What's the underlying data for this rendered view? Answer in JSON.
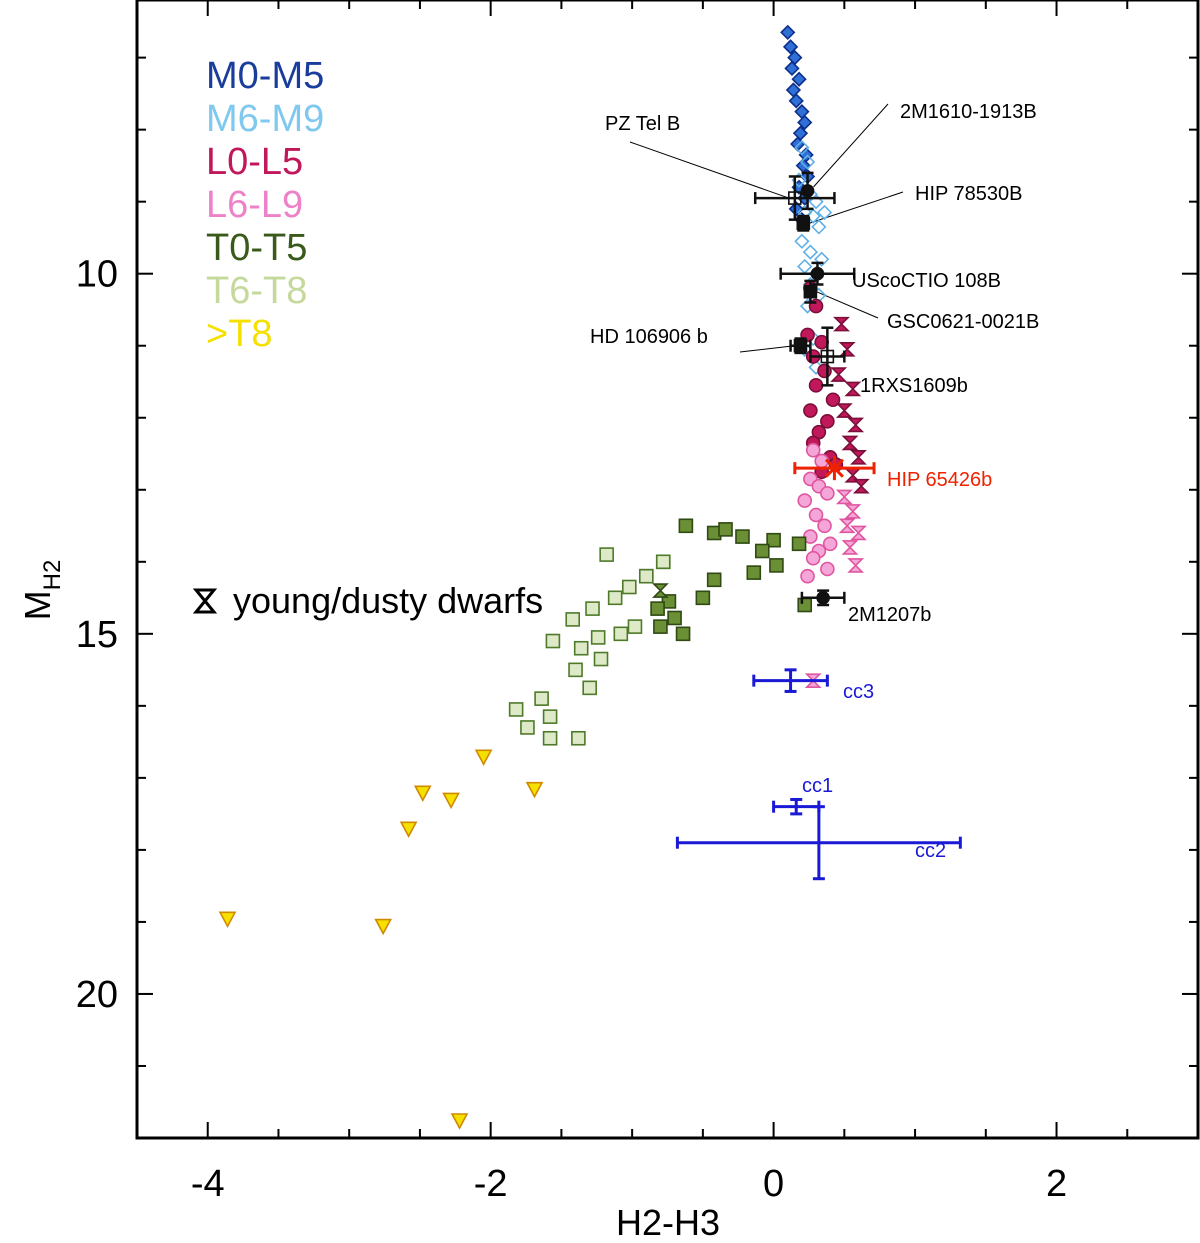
{
  "chart_data": {
    "type": "scatter",
    "xlabel": "H2-H3",
    "ylabel_main": "M",
    "ylabel_sub": "H2",
    "xlim": [
      -4.5,
      3.0
    ],
    "ylim": [
      6.2,
      22.0
    ],
    "y_inverted": true,
    "xticks": [
      -4,
      -2,
      0,
      2
    ],
    "xtick_labels": [
      "-4",
      "-2",
      "0",
      "2"
    ],
    "yticks": [
      10,
      15,
      20
    ],
    "ytick_labels": [
      "10",
      "15",
      "20"
    ],
    "legend": [
      {
        "label": "M0-M5",
        "color": "#1a3d9c"
      },
      {
        "label": "M6-M9",
        "color": "#7fc8ef"
      },
      {
        "label": "L0-L5",
        "color": "#c0185a"
      },
      {
        "label": "L6-L9",
        "color": "#ee82c8"
      },
      {
        "label": "T0-T5",
        "color": "#3a5a1c"
      },
      {
        "label": "T6-T8",
        "color": "#c5d99c"
      },
      {
        "label": ">T8",
        "color": "#f5e000"
      }
    ],
    "young_legend": "young/dusty dwarfs",
    "series": [
      {
        "name": "M0-M5",
        "marker": "diamond",
        "fill": "#2f6fd6",
        "stroke": "#0b2f8a",
        "points": [
          [
            0.1,
            6.65
          ],
          [
            0.12,
            6.85
          ],
          [
            0.15,
            7.0
          ],
          [
            0.13,
            7.15
          ],
          [
            0.18,
            7.3
          ],
          [
            0.14,
            7.45
          ],
          [
            0.16,
            7.6
          ],
          [
            0.2,
            7.75
          ],
          [
            0.22,
            7.9
          ],
          [
            0.19,
            8.05
          ],
          [
            0.17,
            8.2
          ],
          [
            0.23,
            8.35
          ],
          [
            0.21,
            8.5
          ],
          [
            0.24,
            8.65
          ],
          [
            0.18,
            8.8
          ],
          [
            0.22,
            8.95
          ],
          [
            0.16,
            9.1
          ],
          [
            0.2,
            9.25
          ]
        ]
      },
      {
        "name": "M6-M9",
        "marker": "diamond-open",
        "fill": "none",
        "stroke": "#5fb0e8",
        "points": [
          [
            0.2,
            8.25
          ],
          [
            0.24,
            8.45
          ],
          [
            0.18,
            8.7
          ],
          [
            0.26,
            8.9
          ],
          [
            0.3,
            9.0
          ],
          [
            0.22,
            9.15
          ],
          [
            0.28,
            9.2
          ],
          [
            0.36,
            9.15
          ],
          [
            0.32,
            9.35
          ],
          [
            0.2,
            9.55
          ],
          [
            0.26,
            9.7
          ],
          [
            0.34,
            9.8
          ],
          [
            0.22,
            9.9
          ],
          [
            0.3,
            10.0
          ],
          [
            0.26,
            10.15
          ],
          [
            0.32,
            10.3
          ],
          [
            0.24,
            10.45
          ],
          [
            0.28,
            10.9
          ],
          [
            0.22,
            11.05
          ],
          [
            0.3,
            11.3
          ]
        ]
      },
      {
        "name": "L0-L5",
        "marker": "circle",
        "fill": "#c0185a",
        "stroke": "#7a0f3a",
        "points": [
          [
            0.26,
            10.2
          ],
          [
            0.3,
            10.45
          ],
          [
            0.24,
            10.85
          ],
          [
            0.34,
            10.95
          ],
          [
            0.28,
            11.15
          ],
          [
            0.36,
            11.35
          ],
          [
            0.3,
            11.55
          ],
          [
            0.42,
            11.75
          ],
          [
            0.26,
            11.9
          ],
          [
            0.38,
            12.05
          ],
          [
            0.32,
            12.2
          ],
          [
            0.28,
            12.35
          ],
          [
            0.4,
            12.55
          ],
          [
            0.34,
            12.75
          ],
          [
            0.44,
            12.65
          ]
        ]
      },
      {
        "name": "L6-L9",
        "marker": "circle-open",
        "fill": "#f5a6d8",
        "stroke": "#e0559f",
        "points": [
          [
            0.28,
            12.45
          ],
          [
            0.34,
            12.6
          ],
          [
            0.26,
            12.85
          ],
          [
            0.32,
            12.95
          ],
          [
            0.38,
            13.05
          ],
          [
            0.22,
            13.15
          ],
          [
            0.3,
            13.35
          ],
          [
            0.36,
            13.5
          ],
          [
            0.26,
            13.65
          ],
          [
            0.4,
            13.75
          ],
          [
            0.32,
            13.85
          ],
          [
            0.28,
            13.95
          ],
          [
            0.38,
            14.1
          ],
          [
            0.24,
            14.2
          ]
        ]
      },
      {
        "name": "L-young",
        "marker": "hourglass",
        "fill": "#c0185a",
        "stroke": "#7a0f3a",
        "points": [
          [
            0.48,
            10.7
          ],
          [
            0.52,
            11.05
          ],
          [
            0.46,
            11.4
          ],
          [
            0.56,
            11.6
          ],
          [
            0.5,
            11.9
          ],
          [
            0.58,
            12.1
          ],
          [
            0.54,
            12.35
          ],
          [
            0.6,
            12.55
          ],
          [
            0.56,
            12.8
          ],
          [
            0.62,
            12.95
          ]
        ]
      },
      {
        "name": "L6-L9 young",
        "marker": "hourglass",
        "fill": "#f5a6d8",
        "stroke": "#e0559f",
        "points": [
          [
            0.5,
            13.1
          ],
          [
            0.56,
            13.3
          ],
          [
            0.52,
            13.5
          ],
          [
            0.6,
            13.6
          ],
          [
            0.54,
            13.8
          ],
          [
            0.58,
            14.05
          ]
        ]
      },
      {
        "name": "T0-T5",
        "marker": "square",
        "fill": "#6a8f34",
        "stroke": "#2f4a12",
        "points": [
          [
            -0.62,
            13.5
          ],
          [
            -0.42,
            13.6
          ],
          [
            -0.34,
            13.55
          ],
          [
            -0.22,
            13.65
          ],
          [
            0.0,
            13.7
          ],
          [
            0.18,
            13.75
          ],
          [
            -0.08,
            13.85
          ],
          [
            -0.78,
            14.0
          ],
          [
            -0.9,
            14.2
          ],
          [
            -0.42,
            14.25
          ],
          [
            -0.14,
            14.15
          ],
          [
            0.02,
            14.05
          ],
          [
            -0.74,
            14.55
          ],
          [
            -0.82,
            14.65
          ],
          [
            -0.7,
            14.78
          ],
          [
            -0.8,
            14.9
          ],
          [
            -0.64,
            15.0
          ],
          [
            0.22,
            14.6
          ],
          [
            -0.5,
            14.5
          ]
        ]
      },
      {
        "name": "T-young",
        "marker": "hourglass",
        "fill": "#6a8f34",
        "stroke": "#2f4a12",
        "points": [
          [
            -0.8,
            14.4
          ]
        ]
      },
      {
        "name": "T6-T8",
        "marker": "square-open",
        "fill": "#dde9c7",
        "stroke": "#4f7a2a",
        "points": [
          [
            -1.18,
            13.9
          ],
          [
            -0.9,
            14.2
          ],
          [
            -1.02,
            14.35
          ],
          [
            -0.78,
            14.0
          ],
          [
            -1.12,
            14.5
          ],
          [
            -1.28,
            14.65
          ],
          [
            -1.42,
            14.8
          ],
          [
            -0.98,
            14.9
          ],
          [
            -1.08,
            15.0
          ],
          [
            -1.24,
            15.05
          ],
          [
            -1.56,
            15.1
          ],
          [
            -1.36,
            15.2
          ],
          [
            -1.22,
            15.35
          ],
          [
            -1.4,
            15.5
          ],
          [
            -1.3,
            15.75
          ],
          [
            -1.64,
            15.9
          ],
          [
            -1.82,
            16.05
          ],
          [
            -1.58,
            16.15
          ],
          [
            -1.74,
            16.3
          ],
          [
            -1.58,
            16.45
          ],
          [
            -1.38,
            16.45
          ]
        ]
      },
      {
        "name": ">T8",
        "marker": "triangle-down",
        "fill": "#f5e000",
        "stroke": "#d08a00",
        "points": [
          [
            -2.05,
            16.7
          ],
          [
            -2.48,
            17.2
          ],
          [
            -2.28,
            17.3
          ],
          [
            -1.69,
            17.15
          ],
          [
            -2.58,
            17.7
          ],
          [
            -3.86,
            18.95
          ],
          [
            -2.76,
            19.05
          ],
          [
            -2.22,
            21.75
          ]
        ]
      }
    ],
    "companions": [
      {
        "label": "PZ Tel B",
        "x": 0.15,
        "y": 8.95,
        "xerr": 0.28,
        "yerr": 0.3,
        "marker": "square-open",
        "color": "#111111"
      },
      {
        "label": "2M1610-1913B",
        "x": 0.24,
        "y": 8.85,
        "xerr": 0.0,
        "yerr": 0.25,
        "marker": "circle",
        "color": "#111111"
      },
      {
        "label": "HIP 78530B",
        "x": 0.21,
        "y": 9.3,
        "xerr": 0.0,
        "yerr": 0.1,
        "marker": "square",
        "color": "#111111"
      },
      {
        "label": "UScoCTIO 108B",
        "x": 0.31,
        "y": 10.0,
        "xerr": 0.26,
        "yerr": 0.15,
        "marker": "circle",
        "color": "#111111"
      },
      {
        "label": "GSC0621-0021B",
        "x": 0.26,
        "y": 10.25,
        "xerr": 0.0,
        "yerr": 0.15,
        "marker": "square",
        "color": "#111111"
      },
      {
        "label": "HD 106906 b",
        "x": 0.19,
        "y": 11.0,
        "xerr": 0.07,
        "yerr": 0.1,
        "marker": "square",
        "color": "#111111"
      },
      {
        "label": "1RXS1609b",
        "x": 0.38,
        "y": 11.15,
        "xerr": 0.12,
        "yerr": 0.4,
        "marker": "square-open",
        "color": "#111111"
      },
      {
        "label": "HIP 65426b",
        "x": 0.43,
        "y": 12.7,
        "xerr": 0.28,
        "yerr": 0.0,
        "marker": "star",
        "color": "#ee2200"
      },
      {
        "label": "2M1207b",
        "x": 0.35,
        "y": 14.5,
        "xerr": 0.15,
        "yerr": 0.1,
        "marker": "circle",
        "color": "#111111"
      },
      {
        "label": "cc3",
        "x": 0.12,
        "y": 15.65,
        "xerr": 0.26,
        "yerr": 0.15,
        "marker": "none",
        "color": "#1a1ad6"
      },
      {
        "label": "cc1",
        "x": 0.16,
        "y": 17.4,
        "xerr": 0.16,
        "yerr": 0.1,
        "marker": "none",
        "color": "#1a1ad6"
      },
      {
        "label": "cc2",
        "x": 0.32,
        "y": 17.9,
        "xerr": 1.0,
        "yerr": 0.5,
        "marker": "none",
        "color": "#1a1ad6"
      }
    ],
    "extra_markers": [
      {
        "x": 0.28,
        "y": 15.65,
        "marker": "hourglass",
        "fill": "#f5a6d8",
        "stroke": "#e0559f"
      }
    ]
  }
}
